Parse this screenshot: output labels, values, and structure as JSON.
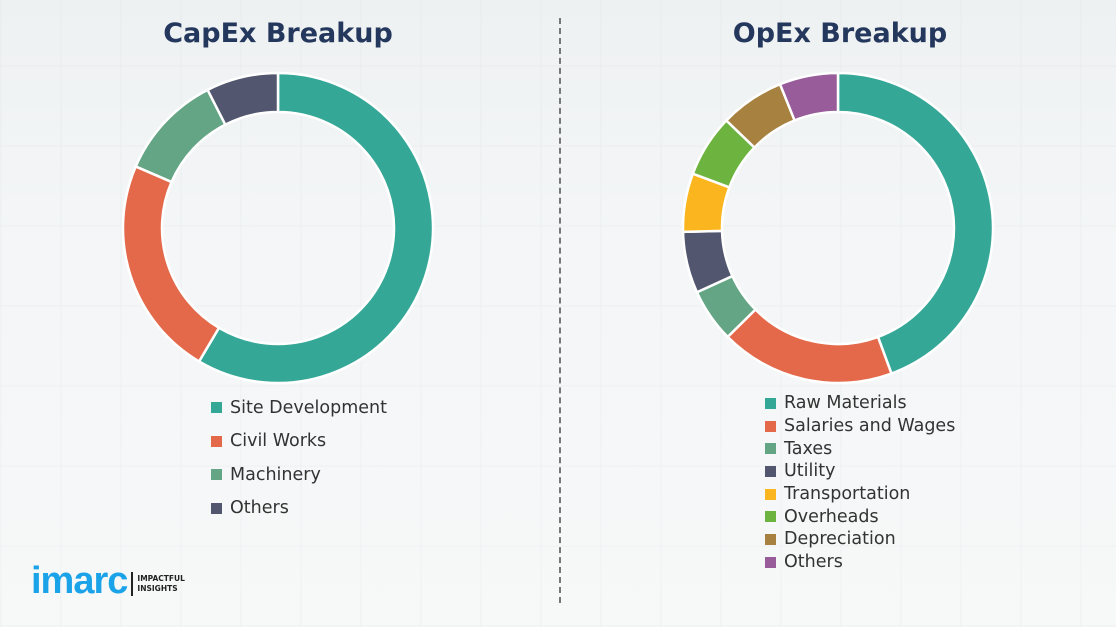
{
  "chart_data": [
    {
      "type": "pie",
      "title": "CapEx Breakup",
      "categories": [
        "Site Development",
        "Civil Works",
        "Machinery",
        "Others"
      ],
      "values": [
        58.5,
        23,
        11,
        7.5
      ],
      "colors": [
        "#35a797",
        "#e4694a",
        "#64a585",
        "#52566e"
      ],
      "legend": "bottom"
    },
    {
      "type": "pie",
      "title": "OpEx Breakup",
      "categories": [
        "Raw Materials",
        "Salaries and Wages",
        "Taxes",
        "Utility",
        "Transportation",
        "Overheads",
        "Depreciation",
        "Others"
      ],
      "values": [
        44.4,
        18.2,
        5.6,
        6.4,
        6.1,
        6.5,
        6.7,
        6.1
      ],
      "colors": [
        "#35a797",
        "#e4694a",
        "#64a585",
        "#52566e",
        "#fbb61f",
        "#6db33f",
        "#a6813f",
        "#975c99"
      ],
      "legend": "bottom"
    }
  ],
  "logo": {
    "word": "imarc",
    "tagline_1": "IMPACTFUL",
    "tagline_2": "INSIGHTS",
    "color": "#1aa3e8"
  }
}
